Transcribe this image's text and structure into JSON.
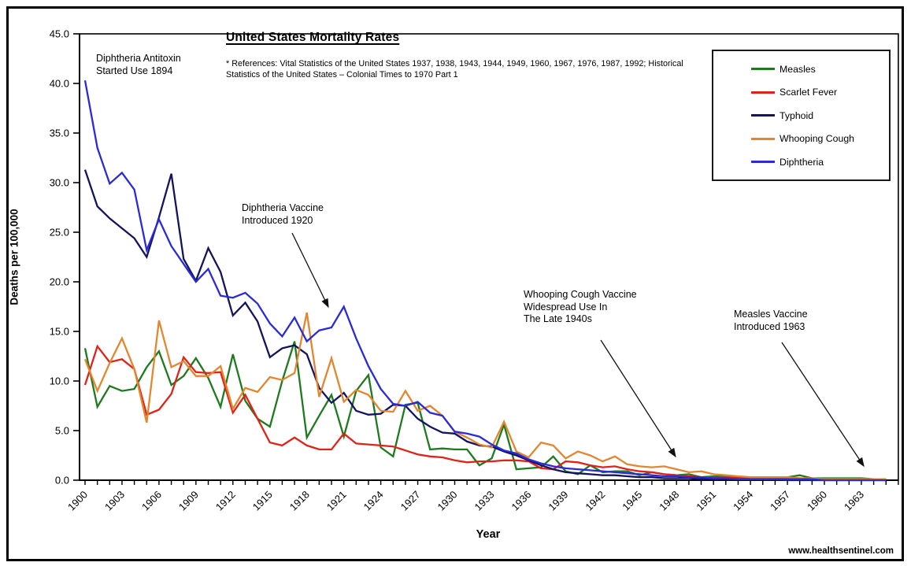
{
  "chart_data": {
    "type": "line",
    "title": "United States Mortality Rates",
    "references": "* References: Vital Statistics of the United States 1937, 1938, 1943, 1944, 1949, 1960, 1967, 1976, 1987, 1992; Historical Statistics of the United States – Colonial Times to 1970 Part 1",
    "xlabel": "Year",
    "ylabel": "Deaths per 100,000",
    "x_start": 1900,
    "x_end": 1965,
    "ylim": [
      0,
      45
    ],
    "grid": false,
    "legend_position": "top-right-inside",
    "y_tick_labels": [
      "0.0",
      "5.0",
      "10.0",
      "15.0",
      "20.0",
      "25.0",
      "30.0",
      "35.0",
      "40.0",
      "45.0"
    ],
    "x_tick_labels": [
      "1900",
      "1903",
      "1906",
      "1909",
      "1912",
      "1915",
      "1918",
      "1921",
      "1924",
      "1927",
      "1930",
      "1933",
      "1936",
      "1939",
      "1942",
      "1945",
      "1948",
      "1951",
      "1954",
      "1957",
      "1960",
      "1963"
    ],
    "x_tick_label_interval": 3,
    "series": [
      {
        "name": "Measles",
        "color": "#1e7a1e",
        "values": [
          13.3,
          7.4,
          9.5,
          9.0,
          9.2,
          11.4,
          13.0,
          9.6,
          10.5,
          12.3,
          10.3,
          7.4,
          12.7,
          8.0,
          6.2,
          5.4,
          10.0,
          14.0,
          4.3,
          6.5,
          8.6,
          4.4,
          9.0,
          10.6,
          3.3,
          2.4,
          7.6,
          7.8,
          3.1,
          3.2,
          3.1,
          3.1,
          1.5,
          2.2,
          5.6,
          1.1,
          1.2,
          1.3,
          2.4,
          0.9,
          0.6,
          1.5,
          0.8,
          0.9,
          0.9,
          0.5,
          0.8,
          0.6,
          0.5,
          0.6,
          0.3,
          0.4,
          0.4,
          0.3,
          0.2,
          0.2,
          0.3,
          0.3,
          0.5,
          0.2,
          0.2,
          0.2,
          0.2,
          0.2,
          0.1,
          0.1
        ]
      },
      {
        "name": "Scarlet Fever",
        "color": "#e02218",
        "values": [
          9.6,
          13.5,
          11.9,
          12.2,
          11.2,
          6.6,
          7.1,
          8.7,
          12.4,
          10.9,
          10.8,
          10.9,
          6.8,
          8.6,
          6.2,
          3.8,
          3.5,
          4.3,
          3.5,
          3.1,
          3.1,
          4.7,
          3.7,
          3.6,
          3.5,
          3.4,
          3.0,
          2.6,
          2.4,
          2.3,
          2.0,
          1.8,
          1.9,
          1.9,
          2.0,
          2.0,
          1.9,
          1.2,
          1.1,
          1.9,
          1.8,
          1.5,
          1.3,
          1.4,
          1.1,
          0.9,
          0.8,
          0.6,
          0.5,
          0.4,
          0.3,
          0.3,
          0.3,
          0.2,
          0.2,
          0.2,
          0.2,
          0.2,
          0.2,
          0.1,
          0.1,
          0.1,
          0.1,
          0.1,
          0.1,
          0.1
        ]
      },
      {
        "name": "Typhoid",
        "color": "#13135e",
        "values": [
          31.3,
          27.6,
          26.4,
          25.4,
          24.4,
          22.5,
          26.5,
          30.9,
          22.3,
          20.1,
          23.4,
          21.0,
          16.6,
          17.9,
          16.0,
          12.4,
          13.3,
          13.6,
          12.7,
          9.3,
          7.8,
          8.8,
          7.0,
          6.6,
          6.7,
          7.6,
          7.5,
          6.2,
          5.4,
          4.8,
          4.7,
          3.9,
          3.5,
          3.4,
          2.9,
          2.5,
          2.0,
          1.5,
          1.1,
          0.8,
          0.7,
          0.6,
          0.5,
          0.5,
          0.4,
          0.3,
          0.3,
          0.2,
          0.2,
          0.2,
          0.1,
          0.1,
          0.1,
          0.1,
          0.1,
          0.1,
          0.1,
          0.0,
          0.0,
          0.0,
          0.0,
          0.0,
          0.0,
          0.0,
          0.0,
          0.0
        ]
      },
      {
        "name": "Whooping Cough",
        "color": "#e2862f",
        "values": [
          12.2,
          9.0,
          11.8,
          14.3,
          11.2,
          5.8,
          16.1,
          11.4,
          12.0,
          10.5,
          10.5,
          11.5,
          7.2,
          9.3,
          8.9,
          10.4,
          10.1,
          10.8,
          16.9,
          8.4,
          12.3,
          7.9,
          9.1,
          8.6,
          7.0,
          6.9,
          9.0,
          7.0,
          7.5,
          6.5,
          4.9,
          4.3,
          3.6,
          3.3,
          5.9,
          2.9,
          2.3,
          3.8,
          3.5,
          2.2,
          2.9,
          2.5,
          1.9,
          2.4,
          1.6,
          1.4,
          1.3,
          1.4,
          1.1,
          0.8,
          0.9,
          0.6,
          0.5,
          0.4,
          0.3,
          0.3,
          0.3,
          0.3,
          0.2,
          0.2,
          0.1,
          0.1,
          0.1,
          0.1,
          0.1,
          0.1
        ]
      },
      {
        "name": "Diphtheria",
        "color": "#2a2ad9",
        "values": [
          40.3,
          33.5,
          29.9,
          31.0,
          29.3,
          23.2,
          26.3,
          23.6,
          21.8,
          20.0,
          21.3,
          18.6,
          18.4,
          18.9,
          17.8,
          15.8,
          14.5,
          16.4,
          14.0,
          15.1,
          15.4,
          17.5,
          14.3,
          11.5,
          9.2,
          7.7,
          7.5,
          7.9,
          6.8,
          6.5,
          4.9,
          4.7,
          4.4,
          3.6,
          3.0,
          2.7,
          2.1,
          1.7,
          1.4,
          1.2,
          1.1,
          1.0,
          0.9,
          0.8,
          0.7,
          0.6,
          0.5,
          0.4,
          0.4,
          0.3,
          0.3,
          0.2,
          0.2,
          0.1,
          0.1,
          0.1,
          0.1,
          0.1,
          0.1,
          0.1,
          0.0,
          0.0,
          0.0,
          0.0,
          0.0,
          0.0
        ]
      }
    ],
    "annotations": [
      {
        "id": "diphtheria-antitoxin",
        "text": "Diphtheria Antitoxin\nStarted Use 1894",
        "arrow": false
      },
      {
        "id": "diphtheria-vaccine",
        "text": "Diphtheria Vaccine\nIntroduced 1920",
        "arrow": true
      },
      {
        "id": "whooping-vaccine",
        "text": "Whooping Cough Vaccine\nWidespread Use In\nThe Late 1940s",
        "arrow": true
      },
      {
        "id": "measles-vaccine",
        "text": "Measles Vaccine\nIntroduced 1963",
        "arrow": true
      }
    ],
    "watermark": "www.healthsentinel.com"
  }
}
